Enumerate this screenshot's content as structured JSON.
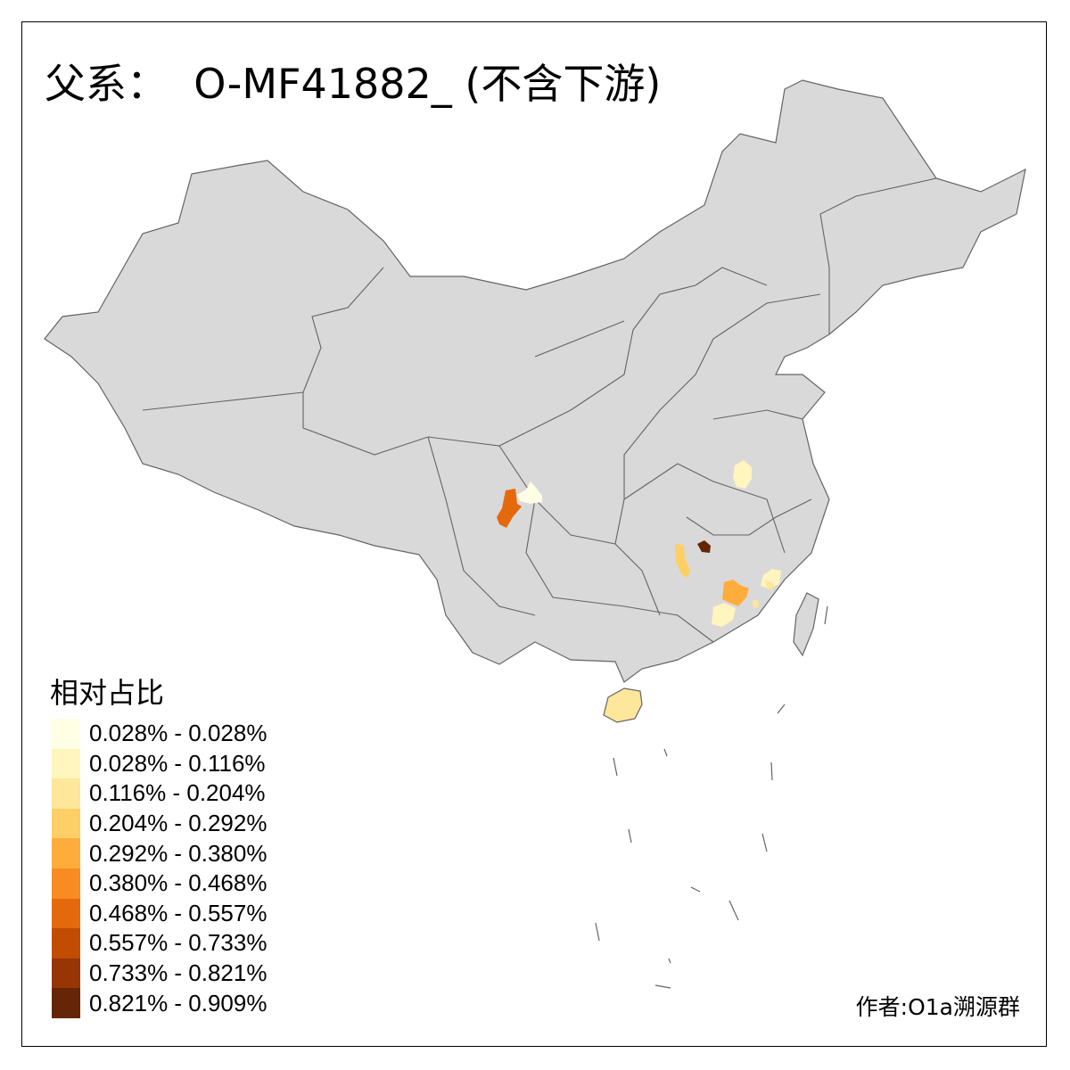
{
  "title": "父系：  O-MF41882_ (不含下游)",
  "legend": {
    "title": "相对占比",
    "items": [
      {
        "label": "0.028% - 0.028%",
        "color": "#FFFFE5"
      },
      {
        "label": "0.028% - 0.116%",
        "color": "#FFF5BF"
      },
      {
        "label": "0.116% - 0.204%",
        "color": "#FEE69A"
      },
      {
        "label": "0.204% - 0.292%",
        "color": "#FECF66"
      },
      {
        "label": "0.292% - 0.380%",
        "color": "#FEAD3C"
      },
      {
        "label": "0.380% - 0.468%",
        "color": "#F88B22"
      },
      {
        "label": "0.468% - 0.557%",
        "color": "#E4690D"
      },
      {
        "label": "0.557% - 0.733%",
        "color": "#C14C02"
      },
      {
        "label": "0.733% - 0.821%",
        "color": "#973504"
      },
      {
        "label": "0.821% - 0.909%",
        "color": "#662506"
      }
    ]
  },
  "map": {
    "base_color": "#D9D9D9",
    "border_color": "#646464",
    "highlighted_region_classes": [
      6,
      0,
      1,
      9,
      3,
      4,
      1,
      1,
      2,
      2,
      2
    ]
  },
  "credit": "作者:O1a溯源群"
}
